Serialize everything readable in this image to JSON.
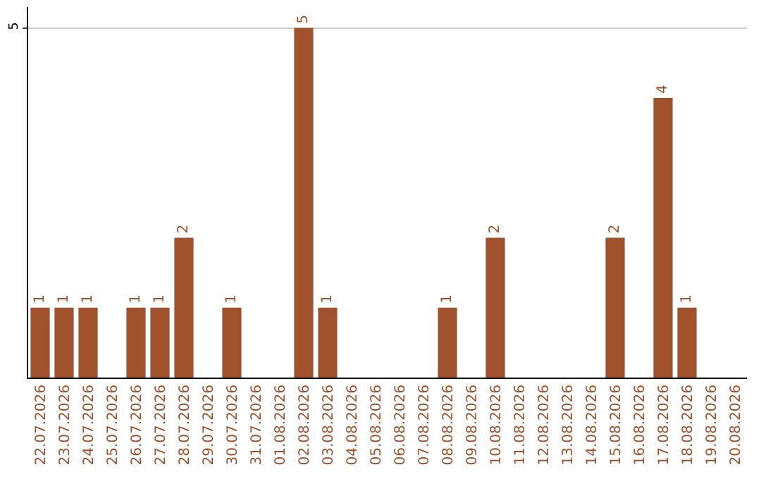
{
  "chart_data": {
    "type": "bar",
    "categories": [
      "22.07.2026",
      "23.07.2026",
      "24.07.2026",
      "25.07.2026",
      "26.07.2026",
      "27.07.2026",
      "28.07.2026",
      "29.07.2026",
      "30.07.2026",
      "31.07.2026",
      "01.08.2026",
      "02.08.2026",
      "03.08.2026",
      "04.08.2026",
      "05.08.2026",
      "06.08.2026",
      "07.08.2026",
      "08.08.2026",
      "09.08.2026",
      "10.08.2026",
      "11.08.2026",
      "12.08.2026",
      "13.08.2026",
      "14.08.2026",
      "15.08.2026",
      "16.08.2026",
      "17.08.2026",
      "18.08.2026",
      "19.08.2026",
      "20.08.2026"
    ],
    "values": [
      1,
      1,
      1,
      0,
      1,
      1,
      2,
      0,
      1,
      0,
      0,
      5,
      1,
      0,
      0,
      0,
      0,
      1,
      0,
      2,
      0,
      0,
      0,
      0,
      2,
      0,
      4,
      1,
      0,
      0
    ],
    "value_labels": [
      "1",
      "1",
      "1",
      null,
      "1",
      "1",
      "2",
      null,
      "1",
      null,
      null,
      "5",
      "1",
      null,
      null,
      null,
      null,
      "1",
      null,
      "2",
      null,
      null,
      null,
      null,
      "2",
      null,
      "4",
      "1",
      null,
      null
    ],
    "color": "#a0522d",
    "ylim": [
      0,
      5.3
    ],
    "yticks": [
      5
    ],
    "grid": "y"
  }
}
